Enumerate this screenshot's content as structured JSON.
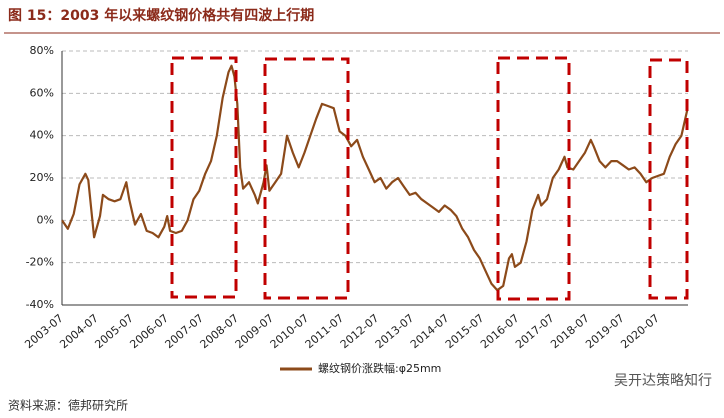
{
  "chart_data": {
    "type": "line",
    "title": "图 15：2003 年以来螺纹钢价格共有四波上行期",
    "source": "资料来源：德邦研究所",
    "watermark": "吴开达策略知行",
    "x": [
      "2003-07",
      "2003-09",
      "2003-11",
      "2004-01",
      "2004-03",
      "2004-04",
      "2004-06",
      "2004-08",
      "2004-09",
      "2004-11",
      "2005-01",
      "2005-03",
      "2005-05",
      "2005-06",
      "2005-08",
      "2005-10",
      "2005-12",
      "2006-02",
      "2006-04",
      "2006-06",
      "2006-07",
      "2006-08",
      "2006-10",
      "2006-12",
      "2007-02",
      "2007-04",
      "2007-06",
      "2007-08",
      "2007-10",
      "2007-12",
      "2008-02",
      "2008-04",
      "2008-05",
      "2008-06",
      "2008-07",
      "2008-08",
      "2008-09",
      "2008-11",
      "2009-01",
      "2009-02",
      "2009-04",
      "2009-05",
      "2009-06",
      "2009-08",
      "2009-10",
      "2009-12",
      "2010-02",
      "2010-04",
      "2010-06",
      "2010-08",
      "2010-10",
      "2010-12",
      "2011-02",
      "2011-04",
      "2011-06",
      "2011-08",
      "2011-10",
      "2011-12",
      "2012-02",
      "2012-04",
      "2012-06",
      "2012-08",
      "2012-10",
      "2012-12",
      "2013-02",
      "2013-04",
      "2013-06",
      "2013-08",
      "2013-10",
      "2013-12",
      "2014-02",
      "2014-04",
      "2014-06",
      "2014-08",
      "2014-10",
      "2014-12",
      "2015-02",
      "2015-04",
      "2015-06",
      "2015-08",
      "2015-10",
      "2015-12",
      "2016-02",
      "2016-04",
      "2016-05",
      "2016-06",
      "2016-08",
      "2016-10",
      "2016-12",
      "2017-02",
      "2017-03",
      "2017-05",
      "2017-07",
      "2017-09",
      "2017-11",
      "2017-12",
      "2018-02",
      "2018-04",
      "2018-06",
      "2018-08",
      "2018-09",
      "2018-11",
      "2019-01",
      "2019-03",
      "2019-05",
      "2019-07",
      "2019-09",
      "2019-11",
      "2020-01",
      "2020-03",
      "2020-05",
      "2020-07",
      "2020-09",
      "2020-11",
      "2021-01",
      "2021-03",
      "2021-05"
    ],
    "series": [
      {
        "name": "螺纹钢价涨跌幅:φ25mm",
        "color": "#8c4a1a",
        "values": [
          0,
          -4,
          3,
          17,
          22,
          19,
          -8,
          2,
          12,
          10,
          9,
          10,
          18,
          10,
          -2,
          3,
          -5,
          -6,
          -8,
          -3,
          2,
          -5,
          -6,
          -5,
          0,
          10,
          14,
          22,
          28,
          40,
          58,
          70,
          73,
          68,
          55,
          25,
          15,
          18,
          12,
          8,
          18,
          26,
          14,
          18,
          22,
          40,
          32,
          25,
          32,
          40,
          48,
          55,
          54,
          53,
          42,
          40,
          35,
          38,
          30,
          24,
          18,
          20,
          15,
          18,
          20,
          16,
          12,
          13,
          10,
          8,
          6,
          4,
          7,
          5,
          2,
          -4,
          -8,
          -14,
          -18,
          -24,
          -30,
          -33,
          -31,
          -18,
          -16,
          -22,
          -20,
          -10,
          5,
          12,
          7,
          10,
          20,
          24,
          30,
          25,
          24,
          28,
          32,
          38,
          35,
          28,
          25,
          28,
          28,
          26,
          24,
          25,
          22,
          18,
          20,
          21,
          22,
          30,
          36,
          40,
          52
        ]
      }
    ],
    "xticks": [
      "2003-07",
      "2004-07",
      "2005-07",
      "2006-07",
      "2007-07",
      "2008-07",
      "2009-07",
      "2010-07",
      "2011-07",
      "2012-07",
      "2013-07",
      "2014-07",
      "2015-07",
      "2016-07",
      "2017-07",
      "2018-07",
      "2019-07",
      "2020-07"
    ],
    "ylim": [
      -40,
      80
    ],
    "yticks": [
      {
        "value": -40,
        "label": "-40%"
      },
      {
        "value": -20,
        "label": "-20%"
      },
      {
        "value": 0,
        "label": "0%"
      },
      {
        "value": 20,
        "label": "20%"
      },
      {
        "value": 40,
        "label": "40%"
      },
      {
        "value": 60,
        "label": "60%"
      },
      {
        "value": 80,
        "label": "80%"
      }
    ],
    "grid": true
  }
}
